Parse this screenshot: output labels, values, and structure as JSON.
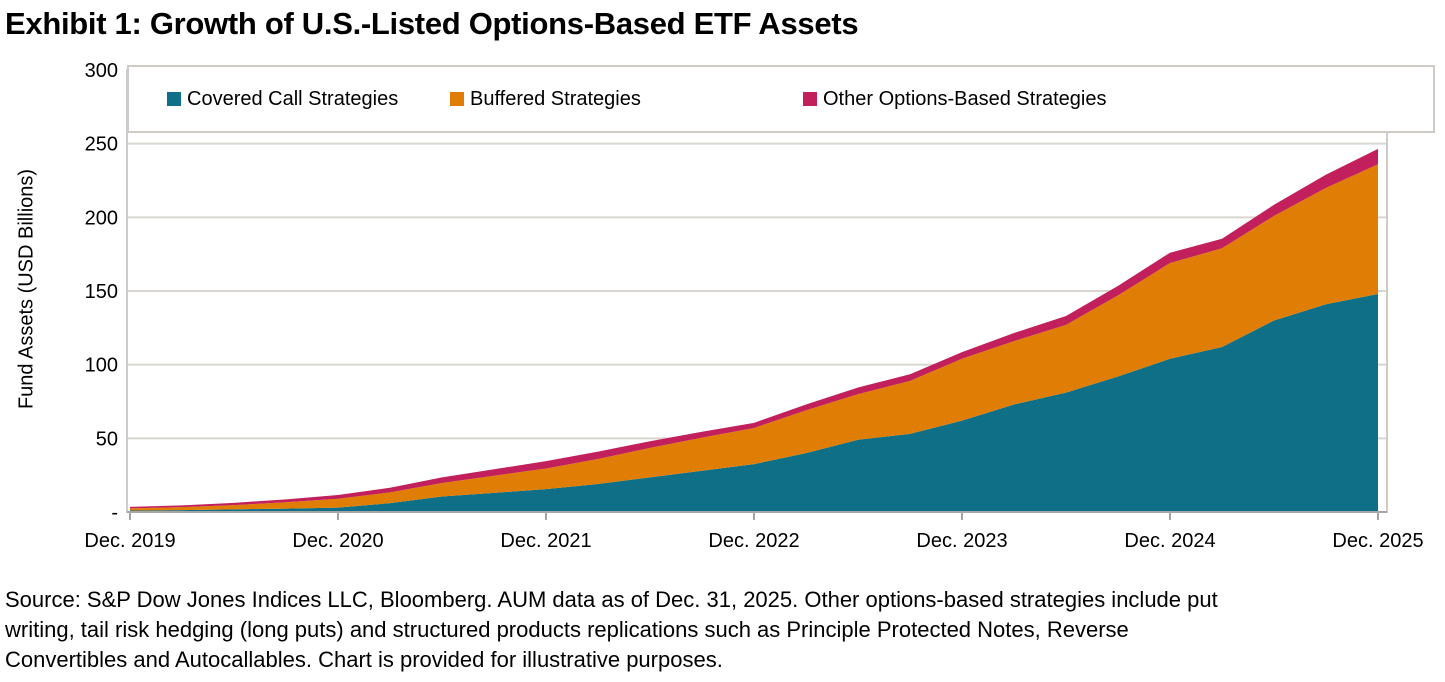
{
  "title": "Exhibit 1: Growth of U.S.-Listed Options-Based ETF Assets",
  "source": {
    "lines": [
      "Source: S&P Dow Jones Indices LLC, Bloomberg. AUM data as of Dec. 31, 2025. Other options-based strategies include put",
      "writing, tail risk hedging (long puts) and structured products replications such as Principle Protected Notes, Reverse",
      "Convertibles and Autocallables. Chart is provided for illustrative purposes."
    ]
  },
  "chart_data": {
    "type": "area",
    "stacked": true,
    "title": "Exhibit 1: Growth of U.S.-Listed Options-Based ETF Assets",
    "xlabel": "",
    "ylabel": "Fund Assets (USD Billions)",
    "ylim": [
      0,
      300
    ],
    "grid": true,
    "legend_position": "top",
    "x": [
      "Dec. 2019",
      "Mar. 2020",
      "Jun. 2020",
      "Sep. 2020",
      "Dec. 2020",
      "Mar. 2021",
      "Jun. 2021",
      "Sep. 2021",
      "Dec. 2021",
      "Mar. 2022",
      "Jun. 2022",
      "Sep. 2022",
      "Dec. 2022",
      "Mar. 2023",
      "Jun. 2023",
      "Sep. 2023",
      "Dec. 2023",
      "Mar. 2024",
      "Jun. 2024",
      "Sep. 2024",
      "Dec. 2024",
      "Mar. 2025",
      "Jun. 2025",
      "Sep. 2025",
      "Dec. 2025"
    ],
    "series": [
      {
        "name": "Covered Call Strategies",
        "color": "#0e6f86",
        "values": [
          1.0,
          1.3,
          1.8,
          2.3,
          3.0,
          6.0,
          10.5,
          13.0,
          15.5,
          19.0,
          23.5,
          28.0,
          32.5,
          40.0,
          49.0,
          53.0,
          62.0,
          73.0,
          81.0,
          92.0,
          104.0,
          112.0,
          130.0,
          141.0,
          148.0
        ]
      },
      {
        "name": "Buffered Strategies",
        "color": "#e07d05",
        "values": [
          1.5,
          2.0,
          2.9,
          4.3,
          6.0,
          7.3,
          9.2,
          11.6,
          14.0,
          17.0,
          20.0,
          22.5,
          24.5,
          29.0,
          31.0,
          36.0,
          42.0,
          43.0,
          46.0,
          55.0,
          65.0,
          67.0,
          71.0,
          79.0,
          88.0
        ]
      },
      {
        "name": "Other Options-Based Strategies",
        "color": "#c2205c",
        "values": [
          1.0,
          1.2,
          1.5,
          2.0,
          2.5,
          3.2,
          3.8,
          4.4,
          5.0,
          5.0,
          4.5,
          4.0,
          3.5,
          4.0,
          4.5,
          4.5,
          4.5,
          5.5,
          6.0,
          6.5,
          7.0,
          6.5,
          7.5,
          9.0,
          10.5
        ]
      }
    ],
    "yticks": [
      {
        "v": 300,
        "label": "300"
      },
      {
        "v": 250,
        "label": "250"
      },
      {
        "v": 200,
        "label": "200"
      },
      {
        "v": 150,
        "label": "150"
      },
      {
        "v": 100,
        "label": "100"
      },
      {
        "v": 50,
        "label": "50"
      },
      {
        "v": 0,
        "label": "-"
      }
    ],
    "xticks": [
      {
        "i": 0,
        "label": "Dec. 2019"
      },
      {
        "i": 4,
        "label": "Dec. 2020"
      },
      {
        "i": 8,
        "label": "Dec. 2021"
      },
      {
        "i": 12,
        "label": "Dec. 2022"
      },
      {
        "i": 16,
        "label": "Dec. 2023"
      },
      {
        "i": 20,
        "label": "Dec. 2024"
      },
      {
        "i": 24,
        "label": "Dec. 2025"
      }
    ],
    "colors": {
      "grid": "#d9d6d1",
      "border": "#cfccc8",
      "axis": "#a6a6a6",
      "text": "#000000"
    }
  }
}
